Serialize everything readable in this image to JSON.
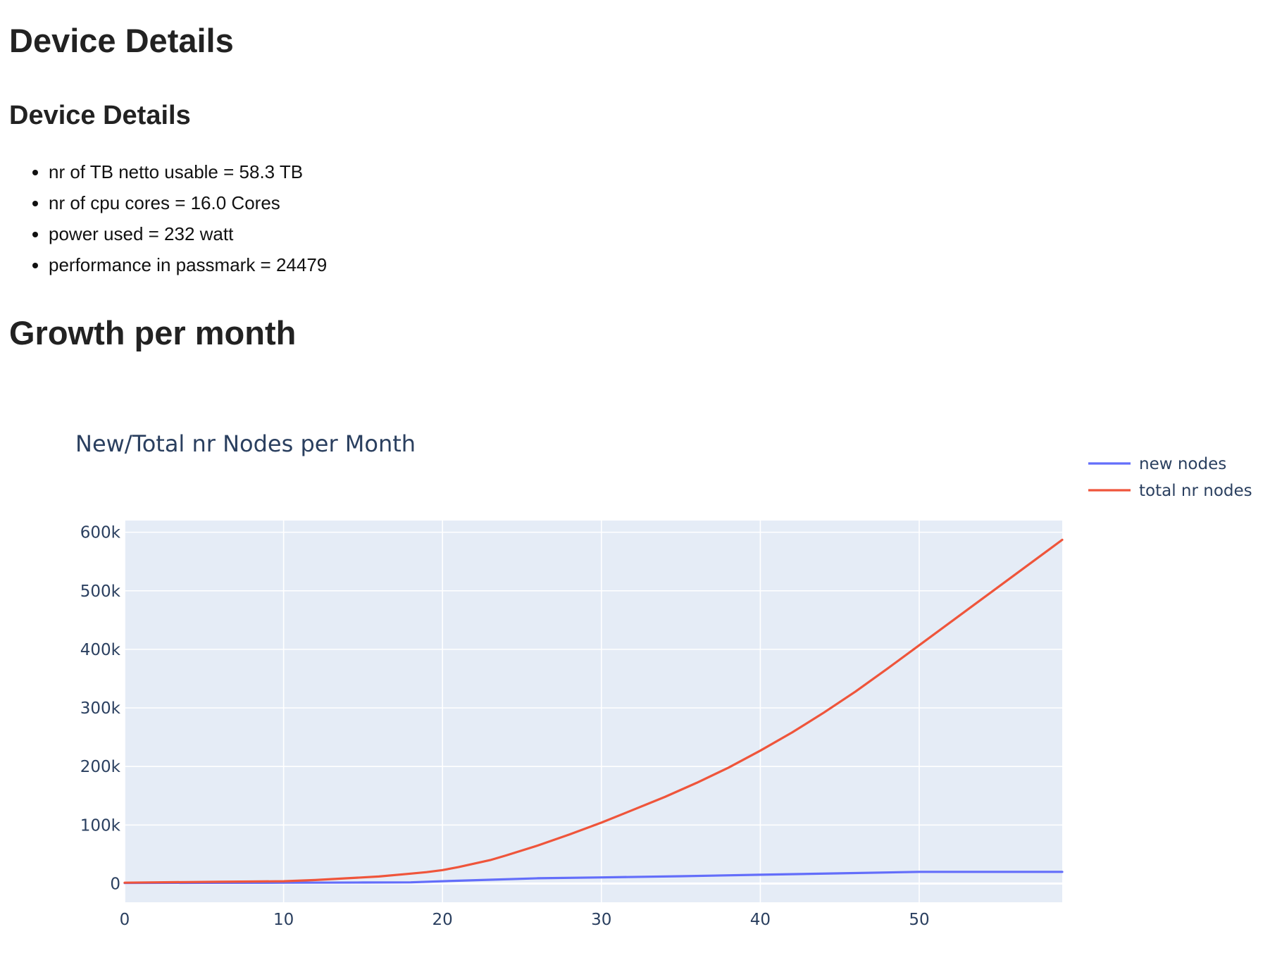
{
  "page": {
    "heading": "Device Details",
    "subheading": "Device Details",
    "details": [
      "nr of TB netto usable = 58.3 TB",
      "nr of cpu cores = 16.0 Cores",
      "power used = 232 watt",
      "performance in passmark = 24479"
    ],
    "growth_heading": "Growth per month"
  },
  "chart_data": {
    "type": "line",
    "title": "New/Total nr Nodes per Month",
    "xlabel": "",
    "ylabel": "",
    "xlim": [
      0,
      59
    ],
    "ylim": [
      -32000,
      620000
    ],
    "x_ticks": [
      0,
      10,
      20,
      30,
      40,
      50
    ],
    "x_tick_labels": [
      "0",
      "10",
      "20",
      "30",
      "40",
      "50"
    ],
    "y_ticks": [
      0,
      100000,
      200000,
      300000,
      400000,
      500000,
      600000
    ],
    "y_tick_labels": [
      "0",
      "100k",
      "200k",
      "300k",
      "400k",
      "500k",
      "600k"
    ],
    "grid": true,
    "legend_position": "right",
    "plot_bgcolor": "#e5ecf6",
    "series": [
      {
        "name": "new nodes",
        "color": "#636efa",
        "x": [
          0,
          5,
          10,
          15,
          18,
          20,
          23,
          26,
          30,
          35,
          40,
          45,
          50,
          55,
          59
        ],
        "y": [
          1000,
          1200,
          1500,
          1800,
          2000,
          4000,
          6500,
          9000,
          10500,
          12500,
          15000,
          17500,
          20000,
          20000,
          20000
        ]
      },
      {
        "name": "total nr nodes",
        "color": "#ef553b",
        "x": [
          0,
          2,
          4,
          6,
          8,
          10,
          12,
          14,
          16,
          18,
          19,
          20,
          21,
          22,
          23,
          24,
          26,
          28,
          30,
          32,
          34,
          36,
          38,
          40,
          42,
          44,
          46,
          48,
          50,
          52,
          54,
          56,
          58,
          59
        ],
        "y": [
          1500,
          2000,
          2500,
          3000,
          3500,
          4000,
          6000,
          9000,
          12000,
          17000,
          19500,
          23000,
          28000,
          34000,
          40000,
          48000,
          65000,
          84000,
          104000,
          126000,
          148000,
          172000,
          198000,
          227000,
          258000,
          292000,
          328000,
          367000,
          407000,
          447000,
          487000,
          527000,
          567000,
          587000
        ]
      }
    ]
  }
}
